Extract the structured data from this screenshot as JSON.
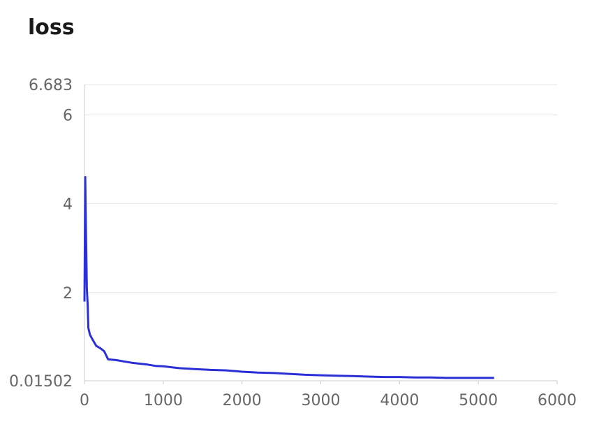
{
  "chart_data": {
    "type": "line",
    "title": "loss",
    "xlabel": "",
    "ylabel": "",
    "xlim": [
      0,
      6000
    ],
    "ylim": [
      0.01502,
      6.683
    ],
    "x_ticks": [
      "0",
      "1000",
      "2000",
      "3000",
      "4000",
      "5000",
      "6000"
    ],
    "y_ticks": [
      "0.01502",
      "2",
      "4",
      "6",
      "6.683"
    ],
    "grid": true,
    "legend": "none",
    "series": [
      {
        "color": "#2b2fd6",
        "x": [
          0,
          10,
          20,
          30,
          40,
          50,
          70,
          100,
          150,
          200,
          250,
          300,
          400,
          500,
          600,
          700,
          800,
          900,
          1000,
          1200,
          1400,
          1600,
          1800,
          2000,
          2200,
          2400,
          2600,
          2800,
          3000,
          3200,
          3400,
          3600,
          3800,
          4000,
          4200,
          4400,
          4600,
          4800,
          5000,
          5200
        ],
        "y": [
          1.8,
          4.6,
          3.2,
          2.1,
          1.75,
          1.2,
          1.05,
          0.95,
          0.8,
          0.75,
          0.68,
          0.5,
          0.48,
          0.45,
          0.42,
          0.4,
          0.38,
          0.35,
          0.34,
          0.3,
          0.28,
          0.26,
          0.25,
          0.22,
          0.2,
          0.19,
          0.17,
          0.15,
          0.14,
          0.13,
          0.12,
          0.11,
          0.1,
          0.1,
          0.09,
          0.09,
          0.08,
          0.08,
          0.08,
          0.08
        ]
      }
    ]
  }
}
